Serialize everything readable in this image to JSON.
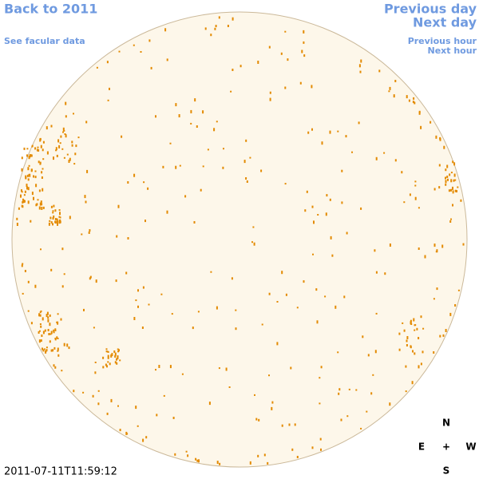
{
  "links": {
    "back": "Back to 2011",
    "facular": "See facular data",
    "previous_day": "Previous day",
    "next_day": "Next day",
    "previous_hour": "Previous hour",
    "next_hour": "Next hour"
  },
  "timestamp": "2011-07-11T11:59:12",
  "compass": {
    "north": "N",
    "east": "E",
    "center": "+",
    "west": "W",
    "south": "S"
  }
}
